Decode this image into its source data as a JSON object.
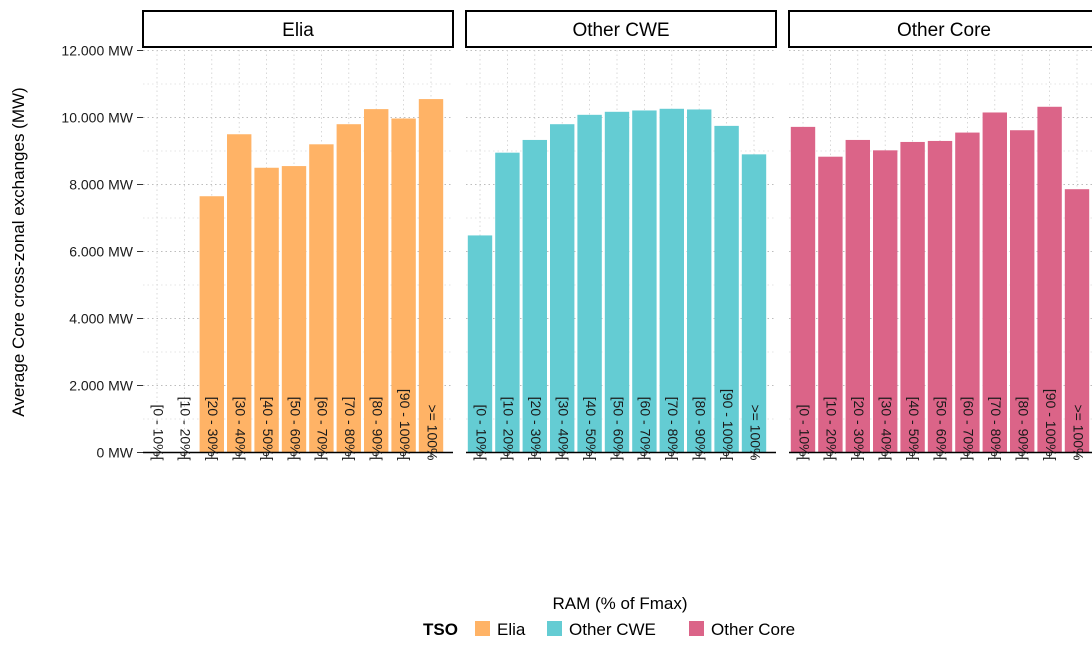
{
  "colors": {
    "Elia": "#FFB366",
    "Other CWE": "#64CCD3",
    "Other Core": "#DB6488"
  },
  "chart_data": {
    "type": "bar",
    "xlabel": "RAM (% of Fmax)",
    "ylabel": "Average Core cross-zonal exchanges (MW)",
    "ylim": [
      0,
      12000
    ],
    "yticks": [
      0,
      2000,
      4000,
      6000,
      8000,
      10000,
      12000
    ],
    "ytick_labels": [
      "0 MW",
      "2.000 MW",
      "4.000 MW",
      "6.000 MW",
      "8.000 MW",
      "10.000 MW",
      "12.000 MW"
    ],
    "grid": true,
    "categories": [
      "[0 - 10%[",
      "[10 - 20%[",
      "[20 - 30%[",
      "[30 - 40%[",
      "[40 - 50%[",
      "[50 - 60%[",
      "[60 - 70%[",
      "[70 - 80%[",
      "[80 - 90%[",
      "[90 - 100%[",
      ">= 100%"
    ],
    "legend": {
      "title": "TSO",
      "position": "bottom",
      "entries": [
        "Elia",
        "Other CWE",
        "Other Core"
      ]
    },
    "series": [
      {
        "name": "Elia",
        "values": [
          null,
          null,
          7650,
          9500,
          8500,
          8550,
          9200,
          9800,
          10250,
          9970,
          10550
        ]
      },
      {
        "name": "Other CWE",
        "values": [
          6480,
          8950,
          9330,
          9800,
          10080,
          10170,
          10210,
          10260,
          10240,
          9750,
          8900
        ]
      },
      {
        "name": "Other Core",
        "values": [
          9720,
          8830,
          9330,
          9020,
          9270,
          9300,
          9550,
          10150,
          9620,
          10320,
          7860
        ]
      }
    ]
  }
}
